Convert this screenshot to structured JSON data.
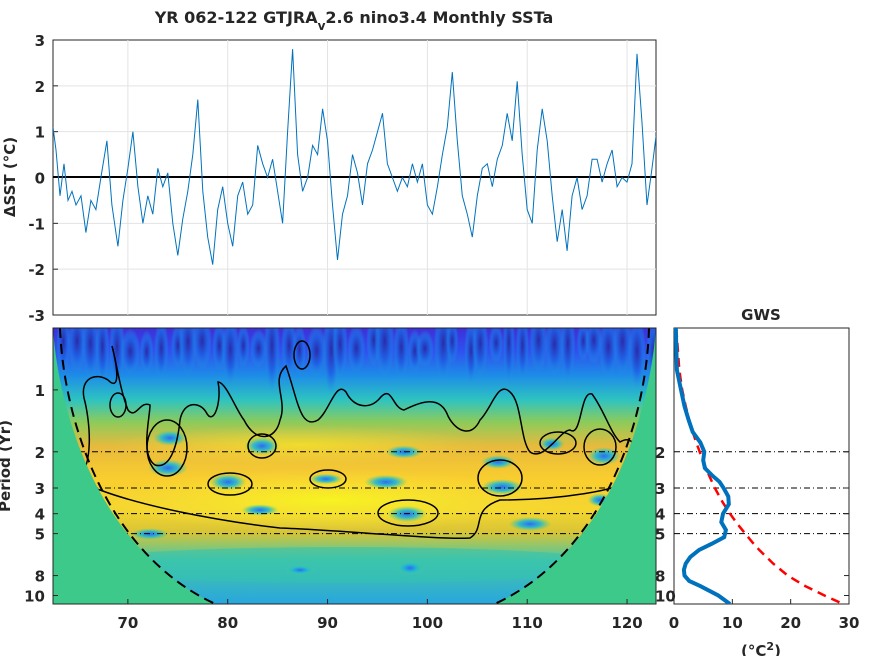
{
  "title_main": "YR 062-122 GTJRA",
  "title_sub": "v",
  "title_rest": "2.6 nino3.4 Monthly SSTa",
  "chart_data": [
    {
      "type": "line",
      "ylabel": "ΔSST (°C)",
      "xlim": [
        62.5,
        122.9
      ],
      "ylim": [
        -3,
        3
      ],
      "yticks": [
        "3",
        "2",
        "1",
        "0",
        "-1",
        "-2",
        "-3"
      ],
      "grid": true,
      "line_color": "#0072BD",
      "zero_line_color": "#000000",
      "x": [
        62.5,
        62.8,
        63.2,
        63.6,
        64.0,
        64.4,
        64.8,
        65.3,
        65.8,
        66.3,
        66.8,
        67.3,
        67.9,
        68.4,
        69.0,
        69.5,
        70.0,
        70.5,
        71.0,
        71.5,
        72.0,
        72.5,
        73.0,
        73.5,
        74.0,
        74.5,
        75.0,
        75.5,
        76.0,
        76.5,
        77.0,
        77.5,
        78.0,
        78.5,
        79.0,
        79.5,
        80.0,
        80.5,
        81.0,
        81.5,
        82.0,
        82.5,
        83.0,
        83.5,
        84.0,
        84.5,
        85.0,
        85.5,
        86.0,
        86.5,
        87.0,
        87.5,
        88.0,
        88.5,
        89.0,
        89.5,
        90.0,
        90.5,
        91.0,
        91.5,
        92.0,
        92.5,
        93.0,
        93.5,
        94.0,
        94.5,
        95.0,
        95.5,
        96.0,
        96.5,
        97.0,
        97.5,
        98.0,
        98.5,
        99.0,
        99.5,
        100.0,
        100.5,
        101.0,
        101.5,
        102.0,
        102.5,
        103.0,
        103.5,
        104.0,
        104.5,
        105.0,
        105.5,
        106.0,
        106.5,
        107.0,
        107.5,
        108.0,
        108.5,
        109.0,
        109.5,
        110.0,
        110.5,
        111.0,
        111.5,
        112.0,
        112.5,
        113.0,
        113.5,
        114.0,
        114.5,
        115.0,
        115.5,
        116.0,
        116.5,
        117.0,
        117.5,
        118.0,
        118.5,
        119.0,
        119.5,
        120.0,
        120.5,
        121.0,
        121.5,
        122.0,
        122.5,
        122.9
      ],
      "y": [
        1.1,
        0.6,
        -0.4,
        0.3,
        -0.5,
        -0.3,
        -0.6,
        -0.4,
        -1.2,
        -0.5,
        -0.7,
        0.0,
        0.8,
        -0.6,
        -1.5,
        -0.5,
        0.2,
        1.0,
        -0.2,
        -1.0,
        -0.4,
        -0.8,
        0.2,
        -0.2,
        0.1,
        -1.0,
        -1.7,
        -0.9,
        -0.3,
        0.5,
        1.7,
        -0.3,
        -1.3,
        -1.9,
        -0.7,
        -0.2,
        -1.0,
        -1.5,
        -0.4,
        -0.1,
        -0.8,
        -0.6,
        0.7,
        0.3,
        0.0,
        0.4,
        -0.3,
        -1.0,
        1.0,
        2.8,
        0.5,
        -0.3,
        0.0,
        0.7,
        0.5,
        1.5,
        0.8,
        -0.6,
        -1.8,
        -0.8,
        -0.4,
        0.5,
        0.1,
        -0.6,
        0.3,
        0.6,
        1.0,
        1.4,
        0.3,
        0.0,
        -0.3,
        0.0,
        -0.2,
        0.3,
        -0.1,
        0.3,
        -0.6,
        -0.8,
        -0.2,
        0.5,
        1.1,
        2.3,
        0.8,
        -0.4,
        -0.8,
        -1.3,
        -0.4,
        0.2,
        0.3,
        -0.2,
        0.4,
        0.7,
        1.4,
        0.8,
        2.1,
        0.5,
        -0.7,
        -1.0,
        0.6,
        1.5,
        0.8,
        -0.4,
        -1.4,
        -0.7,
        -1.6,
        -0.4,
        0.0,
        -0.7,
        -0.4,
        0.4,
        0.4,
        -0.1,
        0.3,
        0.6,
        -0.2,
        0.0,
        -0.1,
        0.3,
        2.7,
        1.2,
        -0.6,
        0.2,
        0.9
      ]
    },
    {
      "type": "heatmap",
      "ylabel": "Period (Yr)",
      "xticks": [
        "70",
        "80",
        "90",
        "100",
        "110",
        "120"
      ],
      "yticks": [
        "1",
        "2",
        "3",
        "4",
        "5",
        "8",
        "10"
      ],
      "period_range": [
        0.5,
        11
      ],
      "reference_periods": [
        2,
        3,
        4,
        5
      ],
      "colormap": "parula",
      "coi_fill": "#3CC98A"
    },
    {
      "type": "line",
      "title": "GWS",
      "xlabel": "(°C²)",
      "xticks": [
        "0",
        "10",
        "20",
        "30"
      ],
      "yticks": [
        "2",
        "3",
        "4",
        "5",
        "8",
        "10"
      ],
      "xlim": [
        0,
        30
      ],
      "reference_periods": [
        2,
        3,
        4,
        5
      ],
      "series": [
        {
          "color": "#0072BD",
          "period": [
            0.5,
            0.8,
            1.0,
            1.2,
            1.4,
            1.6,
            1.8,
            2.0,
            2.2,
            2.4,
            2.6,
            2.8,
            3.0,
            3.3,
            3.6,
            4.0,
            4.4,
            4.8,
            5.2,
            5.6,
            6.0,
            6.5,
            7.0,
            7.5,
            8.0,
            8.5,
            9.0,
            10.0,
            11.0
          ],
          "power": [
            0.3,
            0.5,
            1.2,
            1.8,
            2.5,
            3.2,
            4.5,
            5.2,
            5.0,
            5.3,
            6.5,
            7.8,
            8.5,
            9.3,
            9.4,
            8.4,
            8.1,
            8.9,
            8.6,
            6.5,
            4.3,
            2.8,
            2.0,
            1.7,
            1.8,
            2.6,
            4.5,
            7.6,
            9.6
          ]
        },
        {
          "color": "#FF0000",
          "dashed": true,
          "period": [
            0.5,
            0.8,
            1.0,
            1.2,
            1.4,
            1.6,
            1.8,
            2.0,
            2.3,
            2.6,
            3.0,
            3.5,
            4.0,
            4.5,
            5.0,
            5.5,
            6.0,
            7.0,
            8.0,
            9.0,
            10.0,
            11.0
          ],
          "power": [
            0.4,
            0.9,
            1.4,
            2.0,
            2.6,
            3.2,
            3.8,
            4.4,
            5.2,
            6.0,
            7.0,
            8.3,
            9.6,
            10.9,
            12.2,
            13.4,
            14.6,
            17.0,
            19.5,
            22.5,
            25.8,
            29.0
          ]
        }
      ]
    }
  ]
}
